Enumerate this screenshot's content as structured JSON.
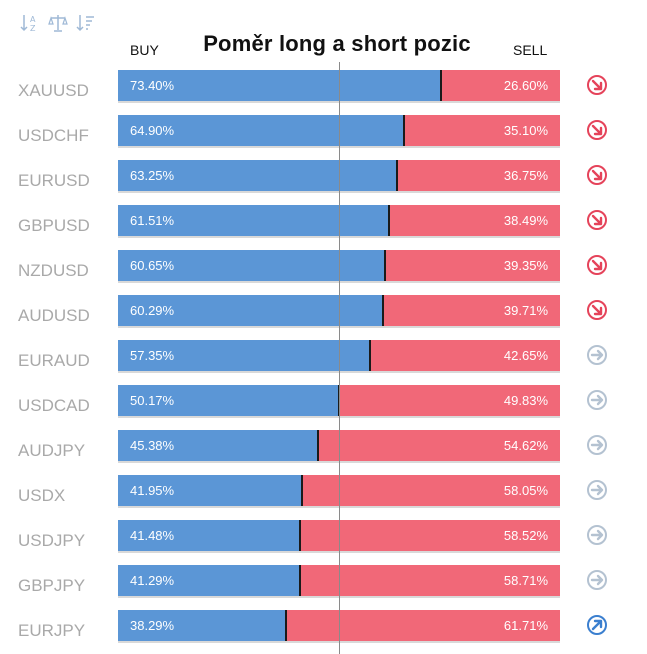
{
  "colors": {
    "buy": "#5b96d6",
    "sell": "#f16878",
    "down": "#e5435a",
    "neutral": "#b4c2d1",
    "up": "#3b7fcf"
  },
  "toolbar": {
    "icons": [
      "sort-alpha-icon",
      "balance-scale-icon",
      "sort-amount-icon"
    ]
  },
  "chart_data": {
    "type": "bar",
    "stacked": true,
    "orientation": "horizontal",
    "title": "Poměr long a short pozic",
    "buy_label": "BUY",
    "sell_label": "SELL",
    "xlim": [
      0,
      100
    ],
    "categories": [
      "XAUUSD",
      "USDCHF",
      "EURUSD",
      "GBPUSD",
      "NZDUSD",
      "AUDUSD",
      "EURAUD",
      "USDCAD",
      "AUDJPY",
      "USDX",
      "USDJPY",
      "GBPJPY",
      "EURJPY"
    ],
    "buy_values": [
      73.4,
      64.9,
      63.25,
      61.51,
      60.65,
      60.29,
      57.35,
      50.17,
      45.38,
      41.95,
      41.48,
      41.29,
      38.29
    ],
    "sell_values": [
      26.6,
      35.1,
      36.75,
      38.49,
      39.35,
      39.71,
      42.65,
      49.83,
      54.62,
      58.05,
      58.52,
      58.71,
      61.71
    ],
    "buy_text": [
      "73.40%",
      "64.90%",
      "63.25%",
      "61.51%",
      "60.65%",
      "60.29%",
      "57.35%",
      "50.17%",
      "45.38%",
      "41.95%",
      "41.48%",
      "41.29%",
      "38.29%"
    ],
    "sell_text": [
      "26.60%",
      "35.10%",
      "36.75%",
      "38.49%",
      "39.35%",
      "39.71%",
      "42.65%",
      "49.83%",
      "54.62%",
      "58.05%",
      "58.52%",
      "58.71%",
      "61.71%"
    ],
    "signals": [
      "down",
      "down",
      "down",
      "down",
      "down",
      "down",
      "neutral",
      "neutral",
      "neutral",
      "neutral",
      "neutral",
      "neutral",
      "up"
    ]
  }
}
